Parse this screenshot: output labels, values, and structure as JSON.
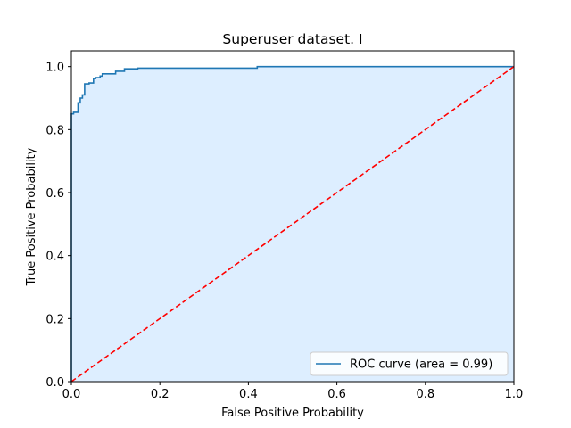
{
  "chart_data": {
    "type": "line",
    "title": "Superuser dataset. I",
    "xlabel": "False Positive Probability",
    "ylabel": "True Positive Probability",
    "xlim": [
      0.0,
      1.0
    ],
    "ylim": [
      0.0,
      1.05
    ],
    "xticks": [
      "0.0",
      "0.2",
      "0.4",
      "0.6",
      "0.8",
      "1.0"
    ],
    "yticks": [
      "0.0",
      "0.2",
      "0.4",
      "0.6",
      "0.8",
      "1.0"
    ],
    "grid": false,
    "legend_position": "lower right",
    "fill_under_curve": true,
    "colors": {
      "roc": "#1f77b4",
      "fill": "#ddeeff",
      "diagonal": "#ff0000"
    },
    "series": [
      {
        "name": "ROC curve (area = 0.99)",
        "style": "solid",
        "x": [
          0.0,
          0.0,
          0.005,
          0.005,
          0.015,
          0.015,
          0.02,
          0.02,
          0.025,
          0.025,
          0.03,
          0.03,
          0.04,
          0.04,
          0.05,
          0.05,
          0.055,
          0.055,
          0.065,
          0.065,
          0.07,
          0.07,
          0.1,
          0.1,
          0.12,
          0.12,
          0.15,
          0.15,
          0.42,
          0.42,
          1.0
        ],
        "y": [
          0.0,
          0.85,
          0.85,
          0.855,
          0.855,
          0.885,
          0.885,
          0.9,
          0.9,
          0.91,
          0.91,
          0.945,
          0.945,
          0.948,
          0.948,
          0.962,
          0.962,
          0.965,
          0.965,
          0.97,
          0.97,
          0.977,
          0.977,
          0.985,
          0.985,
          0.993,
          0.993,
          0.995,
          0.995,
          1.0,
          1.0
        ]
      },
      {
        "style": "dashed",
        "x": [
          0.0,
          1.0
        ],
        "y": [
          0.0,
          1.0
        ]
      }
    ]
  }
}
